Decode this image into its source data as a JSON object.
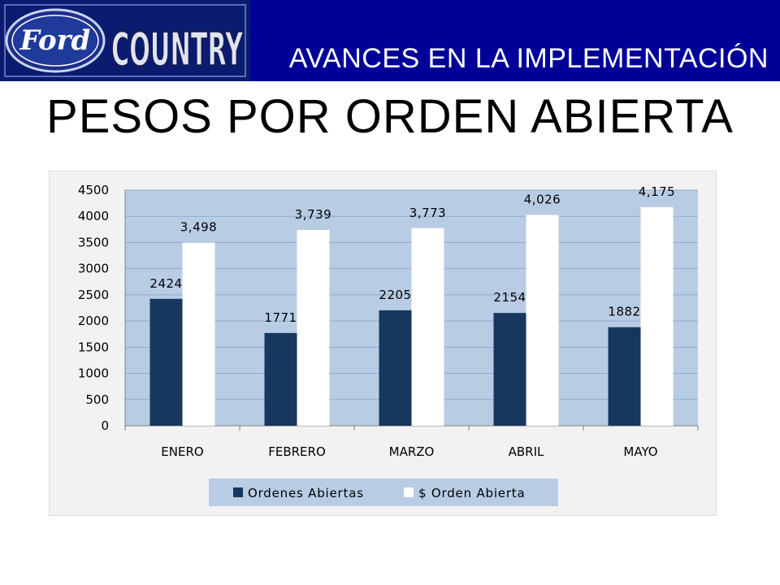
{
  "header": {
    "logo_text_ford": "Ford",
    "logo_text_country": "COUNTRY",
    "title": "AVANCES EN LA IMPLEMENTACIÓN"
  },
  "page": {
    "title": "PESOS POR ORDEN ABIERTA"
  },
  "colors": {
    "header_bg": "#000099",
    "plot_bg": "#b8cce4",
    "series_dark": "#17375e",
    "series_light": "#ffffff"
  },
  "chart_data": {
    "type": "bar",
    "title": "",
    "xlabel": "",
    "ylabel": "",
    "categories": [
      "ENERO",
      "FEBRERO",
      "MARZO",
      "ABRIL",
      "MAYO"
    ],
    "series": [
      {
        "name": "Ordenes Abiertas",
        "values": [
          2424,
          1771,
          2205,
          2154,
          1882
        ],
        "labels": [
          "2424",
          "1771",
          "2205",
          "2154",
          "1882"
        ]
      },
      {
        "name": "$ Orden Abierta",
        "values": [
          3498,
          3739,
          3773,
          4026,
          4175
        ],
        "labels": [
          "3,498",
          "3,739",
          "3,773",
          "4,026",
          "4,175"
        ]
      }
    ],
    "ylim": [
      0,
      4500
    ],
    "yticks": [
      "0",
      "500",
      "1000",
      "1500",
      "2000",
      "2500",
      "3000",
      "3500",
      "4000",
      "4500"
    ],
    "grid": true,
    "legend_position": "bottom"
  }
}
